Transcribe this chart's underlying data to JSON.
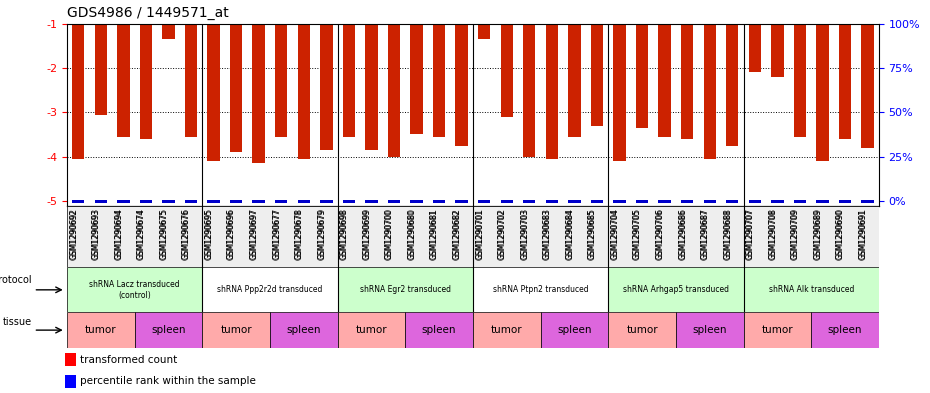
{
  "title": "GDS4986 / 1449571_at",
  "samples": [
    "GSM1290692",
    "GSM1290693",
    "GSM1290694",
    "GSM1290674",
    "GSM1290675",
    "GSM1290676",
    "GSM1290695",
    "GSM1290696",
    "GSM1290697",
    "GSM1290677",
    "GSM1290678",
    "GSM1290679",
    "GSM1290698",
    "GSM1290699",
    "GSM1290700",
    "GSM1290680",
    "GSM1290681",
    "GSM1290682",
    "GSM1290701",
    "GSM1290702",
    "GSM1290703",
    "GSM1290683",
    "GSM1290684",
    "GSM1290685",
    "GSM1290704",
    "GSM1290705",
    "GSM1290706",
    "GSM1290686",
    "GSM1290687",
    "GSM1290688",
    "GSM1290707",
    "GSM1290708",
    "GSM1290709",
    "GSM1290689",
    "GSM1290690",
    "GSM1290691"
  ],
  "values": [
    -4.05,
    -3.05,
    -3.55,
    -3.6,
    -1.35,
    -3.55,
    -4.1,
    -3.9,
    -4.15,
    -3.55,
    -4.05,
    -3.85,
    -3.55,
    -3.85,
    -4.0,
    -3.5,
    -3.55,
    -3.75,
    -1.35,
    -3.1,
    -4.0,
    -4.05,
    -3.55,
    -3.3,
    -4.1,
    -3.35,
    -3.55,
    -3.6,
    -4.05,
    -3.75,
    -2.1,
    -2.2,
    -3.55,
    -4.1,
    -3.6,
    -3.8
  ],
  "protocols": [
    {
      "label": "shRNA Lacz transduced\n(control)",
      "start": 0,
      "end": 6,
      "color": "#ccffcc"
    },
    {
      "label": "shRNA Ppp2r2d transduced",
      "start": 6,
      "end": 12,
      "color": "#ffffff"
    },
    {
      "label": "shRNA Egr2 transduced",
      "start": 12,
      "end": 18,
      "color": "#ccffcc"
    },
    {
      "label": "shRNA Ptpn2 transduced",
      "start": 18,
      "end": 24,
      "color": "#ffffff"
    },
    {
      "label": "shRNA Arhgap5 transduced",
      "start": 24,
      "end": 30,
      "color": "#ccffcc"
    },
    {
      "label": "shRNA Alk transduced",
      "start": 30,
      "end": 36,
      "color": "#ccffcc"
    }
  ],
  "tissues": [
    {
      "label": "tumor",
      "start": 0,
      "end": 3,
      "color": "#ffaaaa"
    },
    {
      "label": "spleen",
      "start": 3,
      "end": 6,
      "color": "#dd66dd"
    },
    {
      "label": "tumor",
      "start": 6,
      "end": 9,
      "color": "#ffaaaa"
    },
    {
      "label": "spleen",
      "start": 9,
      "end": 12,
      "color": "#dd66dd"
    },
    {
      "label": "tumor",
      "start": 12,
      "end": 15,
      "color": "#ffaaaa"
    },
    {
      "label": "spleen",
      "start": 15,
      "end": 18,
      "color": "#dd66dd"
    },
    {
      "label": "tumor",
      "start": 18,
      "end": 21,
      "color": "#ffaaaa"
    },
    {
      "label": "spleen",
      "start": 21,
      "end": 24,
      "color": "#dd66dd"
    },
    {
      "label": "tumor",
      "start": 24,
      "end": 27,
      "color": "#ffaaaa"
    },
    {
      "label": "spleen",
      "start": 27,
      "end": 30,
      "color": "#dd66dd"
    },
    {
      "label": "tumor",
      "start": 30,
      "end": 33,
      "color": "#ffaaaa"
    },
    {
      "label": "spleen",
      "start": 33,
      "end": 36,
      "color": "#dd66dd"
    }
  ],
  "ymin": -5.0,
  "ymax": -1.0,
  "yticks_left": [
    -5,
    -4,
    -3,
    -2,
    -1
  ],
  "yticks_right": [
    0,
    25,
    50,
    75,
    100
  ],
  "bar_color": "#cc2200",
  "percentile_color": "#0000cc",
  "bar_width": 0.55
}
